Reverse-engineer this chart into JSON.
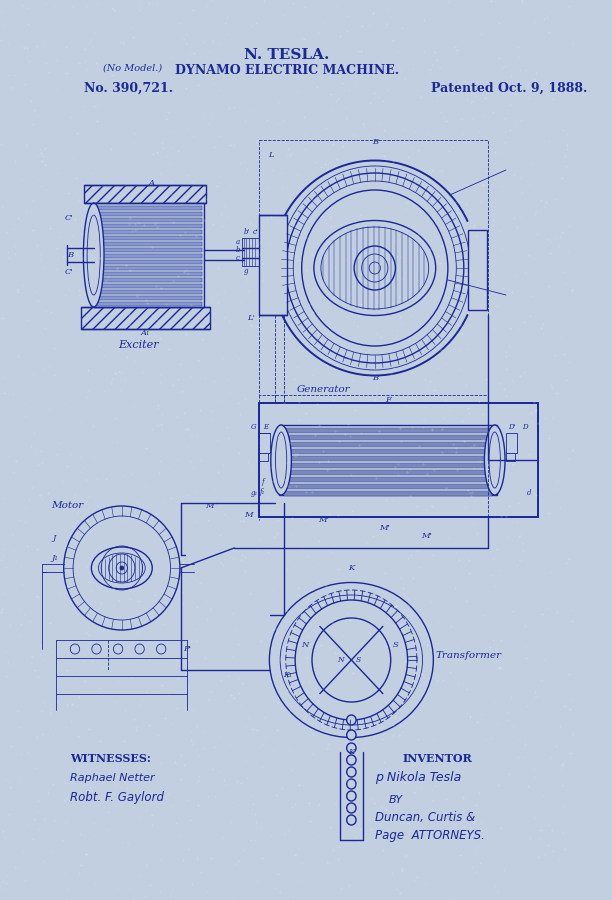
{
  "bg_color": "#c2cfe0",
  "line_color": "#1a2898",
  "title1": "N. TESLA.",
  "title2": "DYNAMO ELECTRIC MACHINE.",
  "no_model": "(No Model.)",
  "patent_no": "No. 390,721.",
  "patent_date": "Patented Oct. 9, 1888.",
  "witnesses_label": "WITNESSES:",
  "witness1": "Raphael Netter",
  "witness2": "Robt. F. Gaylord",
  "inventor_label": "INVENTOR",
  "inventor_name": "p Nikola Tesla",
  "by_label": "BY",
  "attorneys": "Duncan, Curtis &",
  "attorneys2": "Page",
  "attorneys3": "ATTORNEYS.",
  "exciter_label": "Exciter",
  "generator_label": "Generator",
  "motor_label": "Motor",
  "transformer_label": "Transformer",
  "fig_width": 612,
  "fig_height": 900
}
